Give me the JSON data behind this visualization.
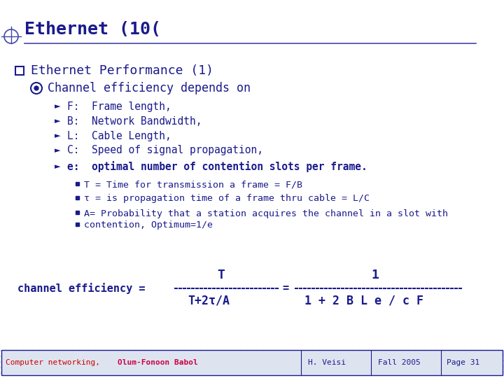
{
  "title": "Ethernet (10(",
  "slide_bg": "#ffffff",
  "dark_blue": "#1a1a8c",
  "mid_blue": "#4444aa",
  "red_color": "#cc0000",
  "title_color": "#1a1a8c",
  "main_bullet": "Ethernet Performance (1)",
  "sub_bullet": "Channel efficiency depends on",
  "arrows": [
    "F:  Frame length,",
    "B:  Network Bandwidth,",
    "L:  Cable Length,",
    "C:  Speed of signal propagation,",
    "e:  optimal number of contention slots per frame."
  ],
  "sub_items": [
    "T = Time for transmission a frame = F/B",
    "τ = is propagation time of a frame thru cable = L/C",
    "A= Probability that a station acquires the channel in a slot with",
    "contention, Optimum=1/e"
  ],
  "formula_num_left": "T",
  "formula_num_right": "1",
  "formula_label": "channel efficiency =",
  "formula_denom_left": "T+2τ/A",
  "formula_denom_right": "1 + 2 B L e / c F",
  "footer_left1": "Computer networking,  ",
  "footer_left2": "Olum-Fonoon Babol",
  "footer_mid": "H. Veisi",
  "footer_mid2": "Fall 2005",
  "footer_right": "Page 31"
}
